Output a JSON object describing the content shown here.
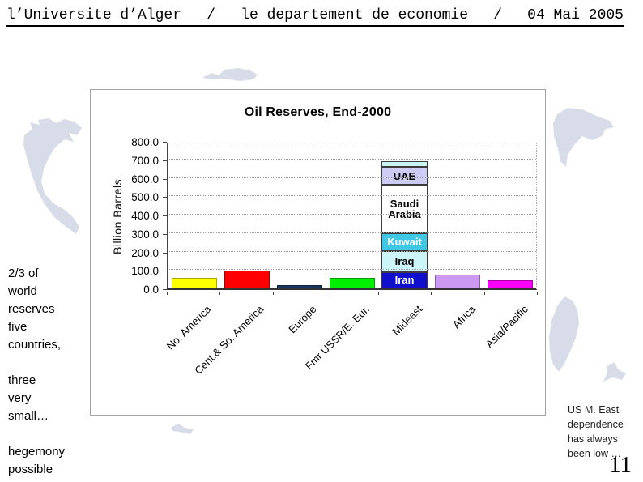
{
  "header": {
    "institution": "l’Universite d’Alger",
    "separator": "/",
    "department": "le departement de economie",
    "date": "04 Mai 2005"
  },
  "annotations": {
    "left_para1": "2/3 of\nworld\nreserves\nfive\ncountries,",
    "left_para2": "three\nvery\nsmall…",
    "left_para3": "hegemony\npossible",
    "right_note": "US M. East\ndependence\nhas always\nbeen low …",
    "page_number": "11"
  },
  "colors": {
    "watermark": "#d7dce8",
    "axis": "#444444",
    "gridline": "#9d9d9d"
  },
  "chart_data": {
    "type": "bar",
    "title": "Oil Reserves, End-2000",
    "ylabel": "Billion Barrels",
    "xlabel": "",
    "ylim": [
      0,
      800
    ],
    "grid": true,
    "legend": "labels inside Mideast stacked bar",
    "ytick_labels": [
      "0.0",
      "100.0",
      "200.0",
      "300.0",
      "400.0",
      "500.0",
      "600.0",
      "700.0",
      "800.0"
    ],
    "categories": [
      "No. America",
      "Cent.& So. America",
      "Europe",
      "Fmr USSR/E. Eur.",
      "Mideast",
      "Africa",
      "Asia/Pacific"
    ],
    "values": [
      57,
      97,
      19,
      58,
      690,
      75,
      44
    ],
    "bar_colors": [
      "#ffff00",
      "#ff0000",
      "#17365d",
      "#00ee00",
      null,
      "#cc99f2",
      "#ff00ff"
    ],
    "mideast_stack": [
      {
        "label": "Iran",
        "value": 90,
        "color": "#1010cc",
        "text_color": "#ffffff"
      },
      {
        "label": "Iraq",
        "value": 113,
        "color": "#ccf5fa",
        "text_color": "#000000"
      },
      {
        "label": "Kuwait",
        "value": 97,
        "color": "#3fc8e6",
        "text_color": "#ffffff"
      },
      {
        "label": "Saudi Arabia",
        "value": 262,
        "color": "#ffffff",
        "text_color": "#000000"
      },
      {
        "label": "UAE",
        "value": 98,
        "color": "#ccccf5",
        "text_color": "#000000"
      },
      {
        "label": "",
        "value": 30,
        "color": "#c9f2f2",
        "text_color": "#000000"
      }
    ]
  }
}
